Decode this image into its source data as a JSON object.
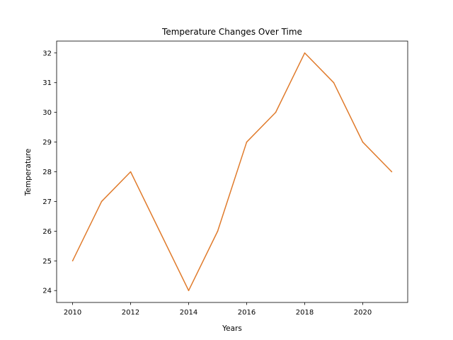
{
  "chart_data": {
    "type": "line",
    "title": "Temperature Changes Over Time",
    "xlabel": "Years",
    "ylabel": "Temperature",
    "x": [
      2010,
      2011,
      2012,
      2013,
      2014,
      2015,
      2016,
      2017,
      2018,
      2019,
      2020,
      2021
    ],
    "series": [
      {
        "values": [
          25,
          27,
          28,
          26,
          24,
          26,
          29,
          30,
          32,
          31,
          29,
          28
        ],
        "color": "#e07b2c"
      }
    ],
    "xlim": [
      2009.45,
      2021.55
    ],
    "ylim": [
      23.6,
      32.4
    ],
    "xticks": [
      2010,
      2012,
      2014,
      2016,
      2018,
      2020
    ],
    "yticks": [
      24,
      25,
      26,
      27,
      28,
      29,
      30,
      31,
      32
    ],
    "grid": false,
    "legend": "none"
  }
}
